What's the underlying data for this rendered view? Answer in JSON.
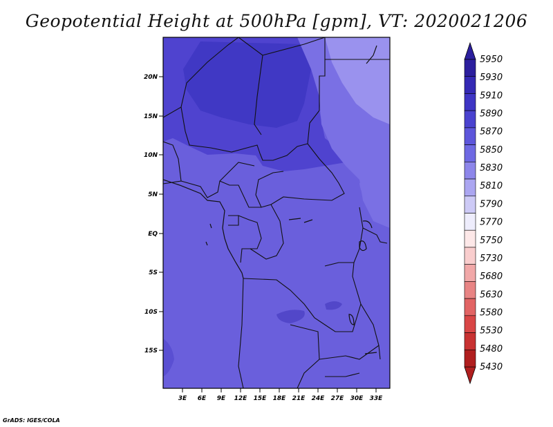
{
  "title": "Geopotential Height at 500hPa [gpm], VT: 2020021206",
  "credit": "GrADS: IGES/COLA",
  "map": {
    "lat_ticks": [
      "20N",
      "15N",
      "10N",
      "5N",
      "EQ",
      "5S",
      "10S",
      "15S"
    ],
    "lon_ticks": [
      "3E",
      "6E",
      "9E",
      "12E",
      "15E",
      "18E",
      "21E",
      "24E",
      "27E",
      "30E",
      "33E"
    ],
    "fill_colors": {
      "base": "#6a5fdc",
      "higher": "#4f43cf",
      "highest": "#4038c4",
      "lower": "#7a70e4",
      "lowest": "#9a92ee",
      "border": "#111111"
    }
  },
  "colorbar": {
    "labels": [
      "5950",
      "5930",
      "5910",
      "5890",
      "5870",
      "5850",
      "5830",
      "5810",
      "5790",
      "5770",
      "5750",
      "5730",
      "5680",
      "5630",
      "5580",
      "5530",
      "5480",
      "5430"
    ],
    "colors": [
      "#2c1f9e",
      "#3429b4",
      "#3e35c4",
      "#4a42cf",
      "#5d56db",
      "#6e69e3",
      "#8d86ea",
      "#aba6f1",
      "#cdcaf6",
      "#eeedfc",
      "#fde8e8",
      "#f9cdcd",
      "#f1a8a8",
      "#e88484",
      "#e26464",
      "#d94646",
      "#c83232",
      "#b01e1e"
    ]
  }
}
